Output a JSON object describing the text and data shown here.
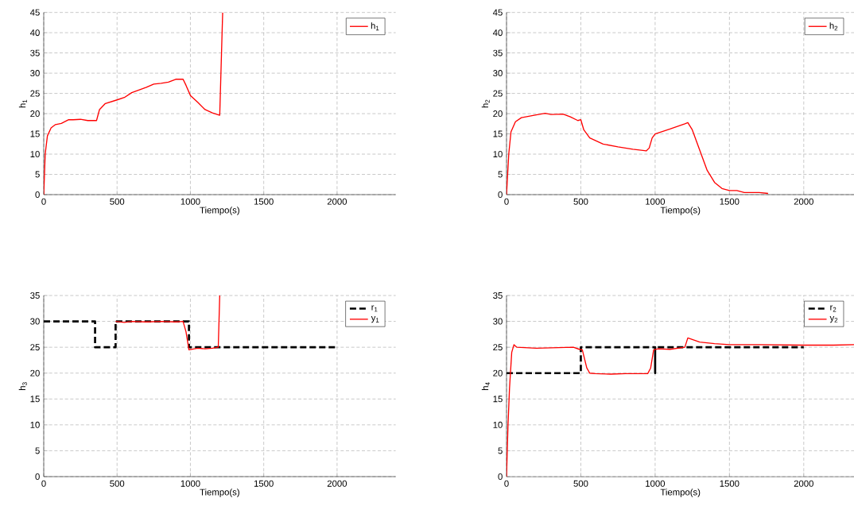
{
  "chart_data": [
    {
      "type": "line",
      "xlabel": "Tiempo(s)",
      "ylabel": "h$_{1}$",
      "xlim": [
        0,
        2400
      ],
      "ylim": [
        0,
        45
      ],
      "xticks": [
        0,
        500,
        1000,
        1500,
        2000
      ],
      "yticks": [
        0,
        5,
        10,
        15,
        20,
        25,
        30,
        35,
        40,
        45
      ],
      "grid": true,
      "legend": "top right",
      "series": [
        {
          "name": "h$_{1}$",
          "color": "#ff0000",
          "line_style": "solid",
          "x": [
            0,
            10,
            25,
            50,
            80,
            120,
            170,
            200,
            250,
            300,
            360,
            380,
            420,
            500,
            550,
            600,
            700,
            750,
            800,
            850,
            900,
            950,
            970,
            1000,
            1050,
            1100,
            1150,
            1200,
            1220
          ],
          "values": [
            0,
            10,
            14.5,
            16.5,
            17.3,
            17.6,
            18.5,
            18.5,
            18.6,
            18.3,
            18.3,
            21,
            22.5,
            23.4,
            24,
            25.2,
            26.5,
            27.3,
            27.5,
            27.8,
            28.5,
            28.5,
            27,
            24.5,
            22.8,
            21,
            20.2,
            19.6,
            45
          ]
        }
      ]
    },
    {
      "type": "line",
      "xlabel": "Tiempo(s)",
      "ylabel": "h$_{2}$",
      "xlim": [
        0,
        2340
      ],
      "ylim": [
        0,
        45
      ],
      "xticks": [
        0,
        500,
        1000,
        1500,
        2000
      ],
      "yticks": [
        0,
        5,
        10,
        15,
        20,
        25,
        30,
        35,
        40,
        45
      ],
      "grid": true,
      "legend": "top right",
      "series": [
        {
          "name": "h$_{2}$",
          "color": "#ff0000",
          "line_style": "solid",
          "x": [
            0,
            15,
            30,
            60,
            100,
            200,
            260,
            300,
            380,
            430,
            480,
            500,
            520,
            560,
            650,
            750,
            850,
            940,
            960,
            980,
            1000,
            1100,
            1200,
            1220,
            1250,
            1300,
            1350,
            1400,
            1450,
            1500,
            1550,
            1600,
            1700,
            1760
          ],
          "values": [
            0,
            10,
            15.5,
            18,
            19,
            19.7,
            20.1,
            19.8,
            19.9,
            19.2,
            18.3,
            18.5,
            16,
            14,
            12.5,
            11.8,
            11.2,
            10.8,
            11.5,
            14,
            15,
            16.2,
            17.5,
            17.8,
            16,
            11,
            6,
            3,
            1.5,
            1,
            1,
            0.5,
            0.5,
            0.3
          ]
        }
      ]
    },
    {
      "type": "line",
      "xlabel": "Tiempo(s)",
      "ylabel": "h$_{3}$",
      "xlim": [
        0,
        2400
      ],
      "ylim": [
        0,
        35
      ],
      "xticks": [
        0,
        500,
        1000,
        1500,
        2000
      ],
      "yticks": [
        0,
        5,
        10,
        15,
        20,
        25,
        30,
        35
      ],
      "grid": true,
      "legend": "top right",
      "series": [
        {
          "name": "r$_{1}$",
          "color": "#000000",
          "line_style": "dashed",
          "x": [
            0,
            350,
            350,
            490,
            490,
            990,
            990,
            2000
          ],
          "values": [
            30,
            30,
            25,
            25,
            30,
            30,
            25,
            25
          ]
        },
        {
          "name": "y$_{1}$",
          "color": "#ff0000",
          "line_style": "solid",
          "x": [
            490,
            550,
            600,
            700,
            800,
            900,
            950,
            970,
            990,
            1050,
            1100,
            1150,
            1190,
            1200
          ],
          "values": [
            30,
            29.8,
            30,
            29.9,
            30,
            29.9,
            30,
            28,
            24.5,
            24.8,
            24.7,
            24.8,
            25,
            35
          ]
        }
      ]
    },
    {
      "type": "line",
      "xlabel": "Tiempo(s)",
      "ylabel": "h$_{4}$",
      "xlim": [
        0,
        2340
      ],
      "ylim": [
        0,
        35
      ],
      "xticks": [
        0,
        500,
        1000,
        1500,
        2000
      ],
      "yticks": [
        0,
        5,
        10,
        15,
        20,
        25,
        30,
        35
      ],
      "grid": true,
      "legend": "top right",
      "series": [
        {
          "name": "r$_{2}$",
          "color": "#000000",
          "line_style": "dashed",
          "x": [
            0,
            500,
            500,
            1000,
            1000,
            1000,
            2000
          ],
          "values": [
            20,
            20,
            25,
            25,
            20,
            25,
            25
          ]
        },
        {
          "name": "y$_{2}$",
          "color": "#ff0000",
          "line_style": "solid",
          "x": [
            0,
            10,
            20,
            35,
            50,
            70,
            200,
            300,
            450,
            490,
            510,
            540,
            560,
            600,
            700,
            800,
            950,
            970,
            990,
            1020,
            1100,
            1200,
            1220,
            1250,
            1300,
            1400,
            1500,
            1700,
            2000,
            2200,
            2340
          ],
          "values": [
            0,
            10,
            17,
            24,
            25.5,
            25,
            24.8,
            24.9,
            25,
            24.6,
            24.5,
            21,
            20,
            19.9,
            19.8,
            19.9,
            19.9,
            21,
            24.5,
            24.7,
            24.6,
            25,
            26.8,
            26.5,
            26,
            25.7,
            25.5,
            25.5,
            25.4,
            25.4,
            25.5
          ]
        }
      ]
    }
  ]
}
